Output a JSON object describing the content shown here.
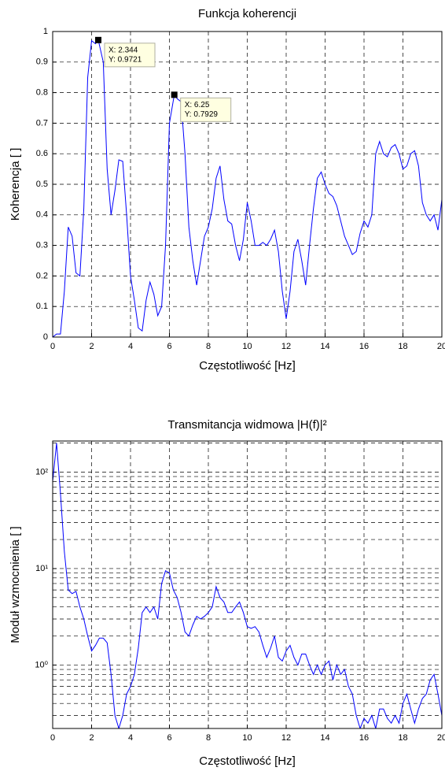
{
  "chart_data": [
    {
      "type": "line",
      "title": "Funkcja koherencji",
      "xlabel": "Częstotliwość [Hz]",
      "ylabel": "Koherencja [ ]",
      "x": [
        0,
        0.2,
        0.4,
        0.6,
        0.8,
        1.0,
        1.2,
        1.4,
        1.6,
        1.8,
        2.0,
        2.2,
        2.344,
        2.6,
        2.8,
        3.0,
        3.2,
        3.4,
        3.6,
        3.8,
        4.0,
        4.2,
        4.4,
        4.6,
        4.8,
        5.0,
        5.2,
        5.4,
        5.6,
        5.8,
        6.0,
        6.25,
        6.4,
        6.6,
        6.8,
        7.0,
        7.2,
        7.4,
        7.6,
        7.8,
        8.0,
        8.2,
        8.4,
        8.6,
        8.8,
        9.0,
        9.2,
        9.4,
        9.6,
        9.8,
        10.0,
        10.2,
        10.4,
        10.6,
        10.8,
        11.0,
        11.2,
        11.4,
        11.6,
        11.8,
        12.0,
        12.2,
        12.4,
        12.6,
        12.8,
        13.0,
        13.2,
        13.4,
        13.6,
        13.8,
        14.0,
        14.2,
        14.4,
        14.6,
        14.8,
        15.0,
        15.2,
        15.4,
        15.6,
        15.8,
        16.0,
        16.2,
        16.4,
        16.6,
        16.8,
        17.0,
        17.2,
        17.4,
        17.6,
        17.8,
        18.0,
        18.2,
        18.4,
        18.6,
        18.8,
        19.0,
        19.2,
        19.4,
        19.6,
        19.8,
        20.0
      ],
      "series": [
        {
          "color": "#0000ff",
          "values": [
            0,
            0.01,
            0.01,
            0.15,
            0.36,
            0.33,
            0.21,
            0.2,
            0.42,
            0.85,
            0.97,
            0.96,
            0.9721,
            0.9,
            0.55,
            0.4,
            0.48,
            0.58,
            0.575,
            0.4,
            0.2,
            0.12,
            0.03,
            0.02,
            0.12,
            0.18,
            0.14,
            0.07,
            0.1,
            0.3,
            0.7,
            0.7929,
            0.78,
            0.77,
            0.6,
            0.36,
            0.25,
            0.17,
            0.25,
            0.33,
            0.36,
            0.42,
            0.52,
            0.56,
            0.45,
            0.38,
            0.37,
            0.3,
            0.25,
            0.32,
            0.44,
            0.38,
            0.3,
            0.3,
            0.31,
            0.3,
            0.32,
            0.35,
            0.28,
            0.15,
            0.06,
            0.15,
            0.28,
            0.32,
            0.25,
            0.17,
            0.3,
            0.42,
            0.52,
            0.54,
            0.5,
            0.47,
            0.46,
            0.43,
            0.38,
            0.33,
            0.3,
            0.27,
            0.28,
            0.34,
            0.38,
            0.36,
            0.4,
            0.6,
            0.64,
            0.6,
            0.59,
            0.62,
            0.63,
            0.6,
            0.55,
            0.56,
            0.6,
            0.61,
            0.56,
            0.44,
            0.4,
            0.38,
            0.4,
            0.35,
            0.45
          ]
        }
      ],
      "xlim": [
        0,
        20
      ],
      "xticks": [
        0,
        2,
        4,
        6,
        8,
        10,
        12,
        14,
        16,
        18,
        20
      ],
      "ylim": [
        0,
        1
      ],
      "yticks": [
        0,
        0.1,
        0.2,
        0.3,
        0.4,
        0.5,
        0.6,
        0.7,
        0.8,
        0.9,
        1
      ],
      "grid": true,
      "annotations": [
        {
          "x": 2.344,
          "y": 0.9721,
          "text_x": "X: 2.344",
          "text_y": "Y: 0.9721"
        },
        {
          "x": 6.25,
          "y": 0.7929,
          "text_x": "X: 6.25",
          "text_y": "Y: 0.7929"
        }
      ]
    },
    {
      "type": "line",
      "title": "Transmitancja widmowa |H(f)|²",
      "xlabel": "Częstotliwość [Hz]",
      "ylabel": "Moduł  wzmocnienia [ ]",
      "x": [
        0,
        0.2,
        0.4,
        0.6,
        0.8,
        1.0,
        1.2,
        1.4,
        1.6,
        1.8,
        2.0,
        2.2,
        2.4,
        2.6,
        2.8,
        3.0,
        3.2,
        3.4,
        3.6,
        3.8,
        4.0,
        4.2,
        4.4,
        4.6,
        4.8,
        5.0,
        5.2,
        5.4,
        5.6,
        5.8,
        6.0,
        6.2,
        6.4,
        6.6,
        6.8,
        7.0,
        7.2,
        7.4,
        7.6,
        7.8,
        8.0,
        8.2,
        8.4,
        8.6,
        8.8,
        9.0,
        9.2,
        9.4,
        9.6,
        9.8,
        10.0,
        10.2,
        10.4,
        10.6,
        10.8,
        11.0,
        11.2,
        11.4,
        11.6,
        11.8,
        12.0,
        12.2,
        12.4,
        12.6,
        12.8,
        13.0,
        13.2,
        13.4,
        13.6,
        13.8,
        14.0,
        14.2,
        14.4,
        14.6,
        14.8,
        15.0,
        15.2,
        15.4,
        15.6,
        15.8,
        16.0,
        16.2,
        16.4,
        16.6,
        16.8,
        17.0,
        17.2,
        17.4,
        17.6,
        17.8,
        18.0,
        18.2,
        18.4,
        18.6,
        18.8,
        19.0,
        19.2,
        19.4,
        19.6,
        19.8,
        20.0
      ],
      "series": [
        {
          "color": "#0000ff",
          "values": [
            80,
            200,
            60,
            15,
            6,
            5.5,
            5.8,
            4,
            3,
            2,
            1.4,
            1.6,
            1.9,
            1.9,
            1.7,
            0.8,
            0.3,
            0.22,
            0.3,
            0.5,
            0.6,
            0.8,
            1.5,
            3.5,
            4,
            3.5,
            4,
            3,
            7,
            9.5,
            9,
            6,
            5,
            3.5,
            2.2,
            2.0,
            2.6,
            3.2,
            3,
            3.2,
            3.5,
            4,
            6.5,
            5,
            4.5,
            3.5,
            3.5,
            4,
            4.5,
            3.5,
            2.5,
            2.4,
            2.5,
            2.2,
            1.6,
            1.2,
            1.5,
            2,
            1.2,
            1.1,
            1.4,
            1.6,
            1.2,
            1.0,
            1.3,
            1.3,
            1.0,
            0.8,
            1.0,
            0.8,
            1.0,
            1.1,
            0.7,
            1.0,
            0.8,
            0.9,
            0.6,
            0.5,
            0.3,
            0.22,
            0.28,
            0.25,
            0.3,
            0.22,
            0.35,
            0.35,
            0.28,
            0.25,
            0.3,
            0.25,
            0.4,
            0.5,
            0.35,
            0.25,
            0.35,
            0.45,
            0.5,
            0.7,
            0.8,
            0.5,
            0.3
          ]
        }
      ],
      "xlim": [
        0,
        20
      ],
      "xticks": [
        0,
        2,
        4,
        6,
        8,
        10,
        12,
        14,
        16,
        18,
        20
      ],
      "log_y": true,
      "ylim": [
        0.22,
        210
      ],
      "yticks": [
        {
          "value": 1,
          "label": "10⁰"
        },
        {
          "value": 10,
          "label": "10¹"
        },
        {
          "value": 100,
          "label": "10²"
        }
      ],
      "yminorticks": [
        0.3,
        0.4,
        0.5,
        0.6,
        0.7,
        0.8,
        0.9,
        2,
        3,
        4,
        5,
        6,
        7,
        8,
        9,
        20,
        30,
        40,
        50,
        60,
        70,
        80,
        90,
        200
      ],
      "grid": true
    }
  ]
}
